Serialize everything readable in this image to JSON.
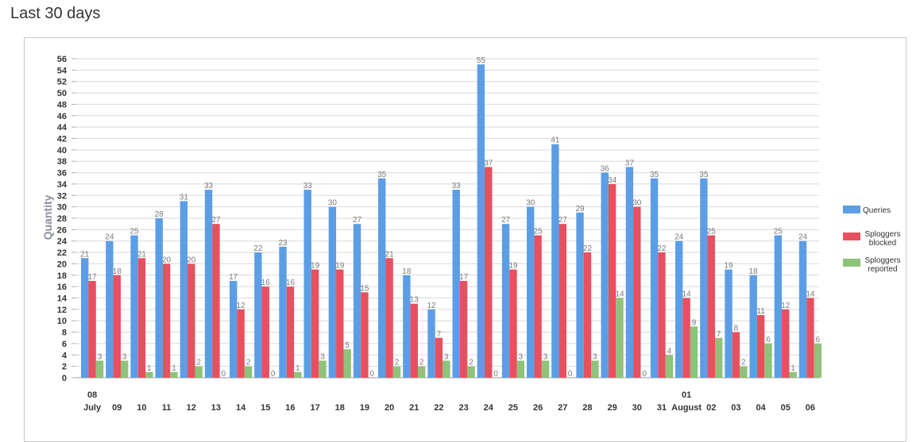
{
  "page": {
    "title": "Last 30 days"
  },
  "chart_data": {
    "type": "bar",
    "title": "Last 30 days",
    "xlabel": "",
    "ylabel": "Quantity",
    "ylim": [
      0,
      56
    ],
    "ytick_step": 2,
    "grid": true,
    "legend_position": "right",
    "categories": [
      "08",
      "09",
      "10",
      "11",
      "12",
      "13",
      "14",
      "15",
      "16",
      "17",
      "18",
      "19",
      "20",
      "21",
      "22",
      "23",
      "24",
      "25",
      "26",
      "27",
      "28",
      "29",
      "30",
      "31",
      "01",
      "02",
      "03",
      "04",
      "05",
      "06"
    ],
    "month_labels": [
      {
        "index": 0,
        "label": "July"
      },
      {
        "index": 24,
        "label": "August"
      }
    ],
    "series": [
      {
        "name": "Queries",
        "color": "#5b9ee6",
        "values": [
          21,
          24,
          25,
          28,
          31,
          33,
          17,
          22,
          23,
          33,
          30,
          27,
          35,
          18,
          12,
          33,
          55,
          27,
          30,
          41,
          29,
          36,
          37,
          35,
          24,
          35,
          19,
          18,
          25,
          24
        ]
      },
      {
        "name": "Sploggers blocked",
        "color": "#e8505f",
        "values": [
          17,
          18,
          21,
          20,
          20,
          27,
          12,
          16,
          16,
          19,
          19,
          15,
          21,
          13,
          7,
          17,
          37,
          19,
          25,
          27,
          22,
          34,
          30,
          22,
          14,
          25,
          8,
          11,
          12,
          14
        ]
      },
      {
        "name": "Sploggers reported",
        "color": "#8fc27a",
        "values": [
          3,
          3,
          1,
          1,
          2,
          0,
          2,
          0,
          1,
          3,
          5,
          0,
          2,
          2,
          3,
          2,
          0,
          3,
          3,
          0,
          3,
          14,
          0,
          4,
          9,
          7,
          2,
          6,
          1,
          6
        ]
      }
    ]
  }
}
